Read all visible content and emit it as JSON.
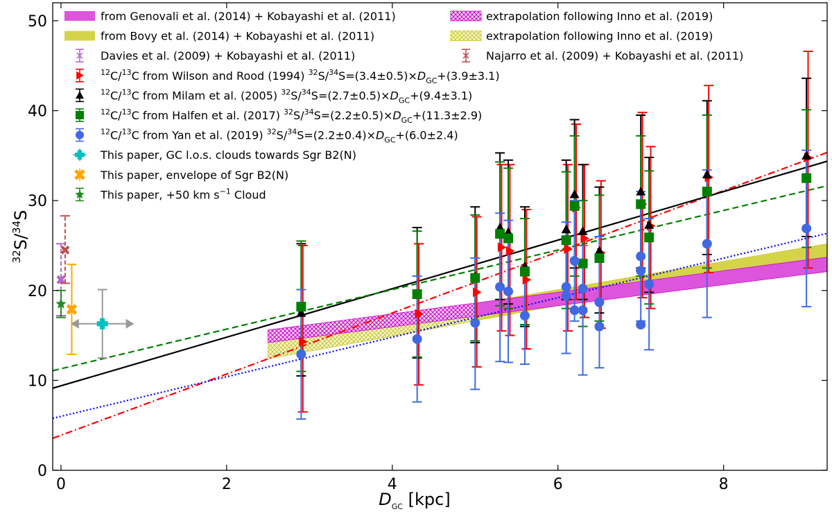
{
  "chart_data": {
    "type": "scatter",
    "title": "",
    "xlabel": {
      "main": "D",
      "sub": "GC",
      "unit": " [kpc]"
    },
    "ylabel": {
      "pre": "32",
      "s1": "S/",
      "mid": "34",
      "s2": "S"
    },
    "xlim": [
      -0.1,
      9.25
    ],
    "ylim": [
      0,
      52
    ],
    "xticks": [
      0,
      2,
      4,
      6,
      8
    ],
    "yticks": [
      0,
      10,
      20,
      30,
      40,
      50
    ],
    "grid": false,
    "legend_position": "top-left",
    "colors": {
      "wilson": "#ff0000",
      "milam": "#000000",
      "halfen": "#008000",
      "yan": "#4169e1",
      "magenta_band": "#cc00cc",
      "yellow_band": "#c8c832",
      "davies": "#b266cc",
      "najarro": "#c0504d",
      "los": "#00c0c0",
      "los_err": "#999999",
      "envelope": "#ffa500",
      "cloud50": "#228b22"
    },
    "fit_lines": [
      {
        "name": "Wilson and Rood (1994) fit",
        "slope": 3.4,
        "intercept": 3.9,
        "color": "#ff0000",
        "style": "dashdot"
      },
      {
        "name": "Milam et al. (2005) fit",
        "slope": 2.7,
        "intercept": 9.4,
        "color": "#000000",
        "style": "solid"
      },
      {
        "name": "Halfen et al. (2017) fit",
        "slope": 2.2,
        "intercept": 11.3,
        "color": "#008000",
        "style": "dashed"
      },
      {
        "name": "Yan et al. (2019) fit",
        "slope": 2.2,
        "intercept": 6.0,
        "color": "#0000ff",
        "style": "dotted"
      }
    ],
    "bands": [
      {
        "name": "Genovali + Kobayashi",
        "color": "#cc00cc",
        "fill": "#dd55dd",
        "solid_from": 5.0,
        "x": [
          2.5,
          9.25
        ],
        "lower": [
          14.2,
          22.1
        ],
        "upper": [
          15.6,
          23.7
        ]
      },
      {
        "name": "Bovy + Kobayashi",
        "color": "#c8c832",
        "fill": "#d4d44a",
        "solid_from": 5.0,
        "x": [
          2.5,
          9.25
        ],
        "lower": [
          12.4,
          23.8
        ],
        "upper": [
          14.6,
          25.2
        ]
      }
    ],
    "series": [
      {
        "name": "Wilson",
        "marker": "triangle-right",
        "color": "#ff0000",
        "offset": 0.02,
        "points": [
          {
            "x": 2.9,
            "y": 14.3,
            "lo": 6.5,
            "hi": 25.0
          },
          {
            "x": 4.3,
            "y": 17.4,
            "lo": 9.5,
            "hi": 25.2
          },
          {
            "x": 5.0,
            "y": 19.8,
            "lo": 11.5,
            "hi": 28.2
          },
          {
            "x": 5.3,
            "y": 24.8,
            "lo": 15.5,
            "hi": 34.0
          },
          {
            "x": 5.4,
            "y": 24.4,
            "lo": 15.0,
            "hi": 34.0
          },
          {
            "x": 5.6,
            "y": 21.2,
            "lo": 13.5,
            "hi": 29.0
          },
          {
            "x": 6.1,
            "y": 24.6,
            "lo": 15.5,
            "hi": 34.0
          },
          {
            "x": 6.2,
            "y": 29.2,
            "lo": 19.0,
            "hi": 38.5
          },
          {
            "x": 6.3,
            "y": 25.8,
            "lo": 17.0,
            "hi": 34.0
          },
          {
            "x": 6.5,
            "y": 24.2,
            "lo": 15.8,
            "hi": 32.2
          },
          {
            "x": 7.0,
            "y": 29.6,
            "lo": 19.2,
            "hi": 39.8
          },
          {
            "x": 7.1,
            "y": 27.2,
            "lo": 18.0,
            "hi": 36.0
          },
          {
            "x": 7.8,
            "y": 32.6,
            "lo": 22.0,
            "hi": 42.8
          },
          {
            "x": 9.0,
            "y": 34.8,
            "lo": 22.5,
            "hi": 46.6
          }
        ]
      },
      {
        "name": "Milam",
        "marker": "triangle-up",
        "color": "#000000",
        "offset": 0.0,
        "points": [
          {
            "x": 2.9,
            "y": 17.5,
            "lo": 10.5,
            "hi": 25.2
          },
          {
            "x": 4.3,
            "y": 19.5,
            "lo": 12.5,
            "hi": 27.0
          },
          {
            "x": 5.0,
            "y": 21.6,
            "lo": 14.2,
            "hi": 29.3
          },
          {
            "x": 5.3,
            "y": 27.0,
            "lo": 19.0,
            "hi": 35.3
          },
          {
            "x": 5.4,
            "y": 26.5,
            "lo": 18.5,
            "hi": 34.5
          },
          {
            "x": 5.6,
            "y": 22.7,
            "lo": 16.0,
            "hi": 29.3
          },
          {
            "x": 6.1,
            "y": 26.8,
            "lo": 19.0,
            "hi": 34.5
          },
          {
            "x": 6.2,
            "y": 30.7,
            "lo": 22.5,
            "hi": 39.0
          },
          {
            "x": 6.3,
            "y": 26.6,
            "lo": 19.0,
            "hi": 34.0
          },
          {
            "x": 6.5,
            "y": 24.4,
            "lo": 17.5,
            "hi": 31.5
          },
          {
            "x": 7.0,
            "y": 31.0,
            "lo": 22.5,
            "hi": 39.5
          },
          {
            "x": 7.1,
            "y": 27.3,
            "lo": 19.8,
            "hi": 34.8
          },
          {
            "x": 7.8,
            "y": 32.9,
            "lo": 24.0,
            "hi": 41.1
          },
          {
            "x": 9.0,
            "y": 35.0,
            "lo": 26.0,
            "hi": 43.6
          }
        ]
      },
      {
        "name": "Halfen",
        "marker": "square",
        "color": "#008000",
        "offset": 0.0,
        "points": [
          {
            "x": 2.9,
            "y": 18.2,
            "lo": 11.0,
            "hi": 25.5
          },
          {
            "x": 4.3,
            "y": 19.6,
            "lo": 12.6,
            "hi": 26.6
          },
          {
            "x": 5.0,
            "y": 21.4,
            "lo": 14.4,
            "hi": 28.4
          },
          {
            "x": 5.3,
            "y": 26.3,
            "lo": 18.3,
            "hi": 34.3
          },
          {
            "x": 5.4,
            "y": 25.8,
            "lo": 18.0,
            "hi": 33.6
          },
          {
            "x": 5.6,
            "y": 22.1,
            "lo": 16.2,
            "hi": 28.0
          },
          {
            "x": 6.1,
            "y": 25.6,
            "lo": 18.0,
            "hi": 33.2
          },
          {
            "x": 6.2,
            "y": 29.4,
            "lo": 21.6,
            "hi": 37.2
          },
          {
            "x": 6.3,
            "y": 23.0,
            "lo": 16.0,
            "hi": 30.0
          },
          {
            "x": 6.5,
            "y": 23.6,
            "lo": 16.6,
            "hi": 30.6
          },
          {
            "x": 7.0,
            "y": 29.6,
            "lo": 21.6,
            "hi": 37.2
          },
          {
            "x": 7.1,
            "y": 25.9,
            "lo": 18.5,
            "hi": 33.3
          },
          {
            "x": 7.8,
            "y": 31.0,
            "lo": 22.5,
            "hi": 39.5
          },
          {
            "x": 9.0,
            "y": 32.5,
            "lo": 24.8,
            "hi": 40.1
          }
        ]
      },
      {
        "name": "Yan",
        "marker": "circle",
        "color": "#4169e1",
        "offset": 0.0,
        "points": [
          {
            "x": 2.9,
            "y": 12.9,
            "lo": 5.7,
            "hi": 20.1
          },
          {
            "x": 4.3,
            "y": 14.6,
            "lo": 7.6,
            "hi": 21.6
          },
          {
            "x": 5.0,
            "y": 16.4,
            "lo": 9.0,
            "hi": 23.6
          },
          {
            "x": 5.3,
            "y": 20.4,
            "lo": 12.1,
            "hi": 28.6
          },
          {
            "x": 5.4,
            "y": 19.9,
            "lo": 12.0,
            "hi": 27.8
          },
          {
            "x": 5.6,
            "y": 17.2,
            "lo": 11.8,
            "hi": 22.6
          },
          {
            "x": 6.1,
            "y": 20.4,
            "lo": 13.0,
            "hi": 27.6
          },
          {
            "x": 6.2,
            "y": 23.3,
            "lo": 16.6,
            "hi": 30.0
          },
          {
            "x": 6.3,
            "y": 17.8,
            "lo": 10.6,
            "hi": 25.0
          },
          {
            "x": 6.5,
            "y": 18.7,
            "lo": 11.4,
            "hi": 26.0
          },
          {
            "x": 7.0,
            "y": 23.8,
            "lo": 16.6,
            "hi": 31.0
          },
          {
            "x": 7.1,
            "y": 20.7,
            "lo": 13.4,
            "hi": 28.0
          },
          {
            "x": 7.8,
            "y": 25.2,
            "lo": 17.0,
            "hi": 33.4
          },
          {
            "x": 9.0,
            "y": 26.9,
            "lo": 18.2,
            "hi": 35.6
          }
        ]
      }
    ],
    "extra_yan_points": [
      {
        "x": 6.1,
        "y": 19.4
      },
      {
        "x": 6.2,
        "y": 17.8
      },
      {
        "x": 6.3,
        "y": 20.2
      },
      {
        "x": 6.5,
        "y": 16.0
      },
      {
        "x": 7.0,
        "y": 16.2
      },
      {
        "x": 7.0,
        "y": 22.2
      }
    ],
    "gc_points": {
      "davies": {
        "x": 0.0,
        "y": 21.2,
        "lo": 17.2,
        "hi": 25.2,
        "color": "#b266cc"
      },
      "najarro": {
        "x": 0.05,
        "y": 24.5,
        "lo": 20.8,
        "hi": 28.3,
        "color": "#c0504d"
      },
      "cloud50": {
        "x": 0.0,
        "y": 18.5,
        "lo": 17.0,
        "hi": 20.0,
        "color": "#228b22"
      },
      "envelope": {
        "x": 0.13,
        "y": 17.9,
        "lo": 12.9,
        "hi": 22.9,
        "color": "#ffa500"
      },
      "los": {
        "x": 0.5,
        "y": 16.3,
        "lo": 12.5,
        "hi": 20.1,
        "xlo": 0.15,
        "xhi": 0.85,
        "color": "#00c0c0"
      }
    },
    "legend": {
      "left": [
        {
          "key": "genovali",
          "pre": "from Genovali et al. (2014) + Kobayashi et al. (2011)"
        },
        {
          "key": "bovy",
          "pre": "from Bovy et al. (2014) + Kobayashi et al. (2011)"
        },
        {
          "key": "davies",
          "pre": "Davies et al. (2009) + Kobayashi et al. (2011)"
        },
        {
          "key": "wilson",
          "iso": true,
          "pre": " from Wilson and Rood (1994)",
          "fit": "=(3.4±0.5)×",
          "b": "+(3.9±3.1)"
        },
        {
          "key": "milam",
          "iso": true,
          "pre": " from Milam et al. (2005)",
          "fit": "=(2.7±0.5)×",
          "b": "+(9.4±3.1)"
        },
        {
          "key": "halfen",
          "iso": true,
          "pre": " from Halfen et al. (2017)",
          "fit": "=(2.2±0.5)×",
          "b": "+(11.3±2.9)"
        },
        {
          "key": "yan",
          "iso": true,
          "pre": " from Yan et al. (2019)",
          "fit": "=(2.2±0.4)×",
          "b": "+(6.0±2.4)"
        },
        {
          "key": "los",
          "pre": "This paper, GC l.o.s. clouds towards Sgr B2(N)"
        },
        {
          "key": "envelope",
          "pre": "This paper, envelope of Sgr B2(N)"
        },
        {
          "key": "cloud50",
          "pre": "This paper, +50 km s",
          "sup": "−1",
          "post": " Cloud"
        }
      ],
      "right": [
        {
          "key": "extrap_magenta",
          "pre": "extrapolation following Inno et al. (2019)"
        },
        {
          "key": "extrap_yellow",
          "pre": "extrapolation following Inno et al. (2019)"
        },
        {
          "key": "najarro",
          "pre": "Najarro et al. (2009) + Kobayashi et al. (2011)"
        }
      ]
    }
  }
}
